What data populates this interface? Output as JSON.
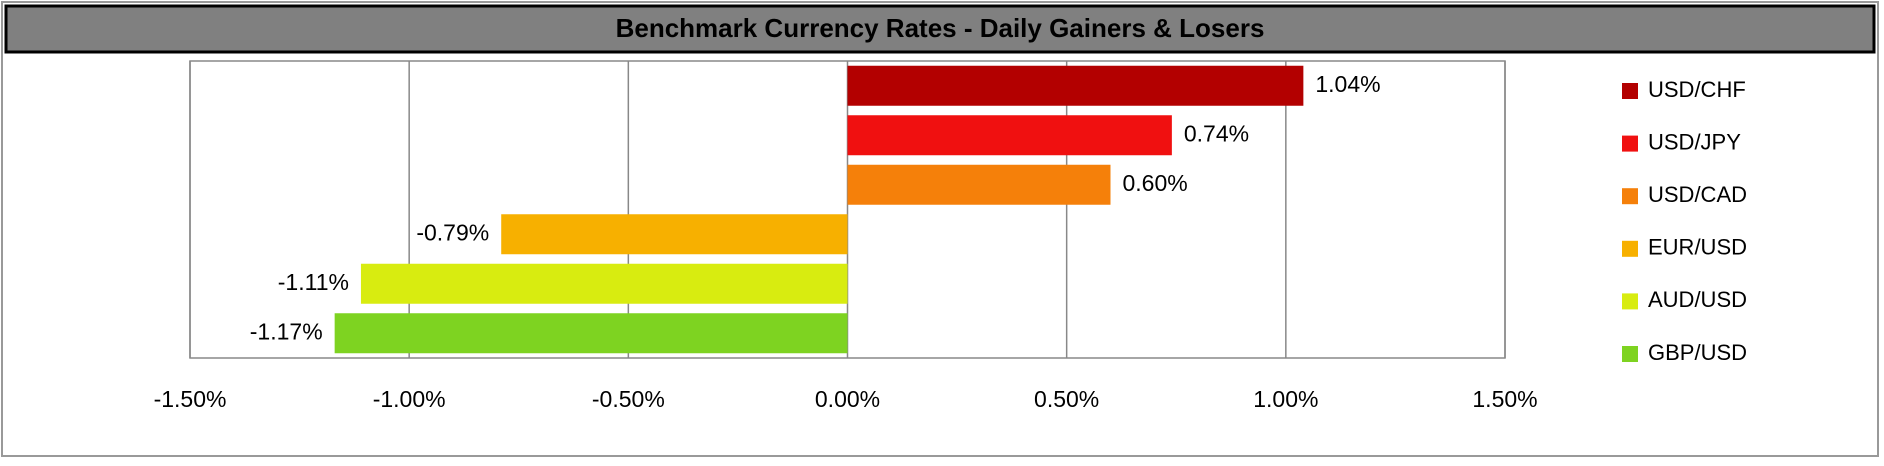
{
  "chart_data": {
    "type": "bar",
    "orientation": "horizontal",
    "title": "Benchmark Currency Rates - Daily Gainers & Losers",
    "categories": [
      "USD/CHF",
      "USD/JPY",
      "USD/CAD",
      "EUR/USD",
      "AUD/USD",
      "GBP/USD"
    ],
    "values": [
      1.04,
      0.74,
      0.6,
      -0.79,
      -1.11,
      -1.17
    ],
    "value_labels": [
      "1.04%",
      "0.74%",
      "0.60%",
      "-0.79%",
      "-1.11%",
      "-1.17%"
    ],
    "colors": [
      "#b30000",
      "#f01010",
      "#f5800a",
      "#f7b000",
      "#d8ec10",
      "#7ed321"
    ],
    "xlim": [
      -1.5,
      1.5
    ],
    "xticks": [
      {
        "value": -1.5,
        "label": "-1.50%"
      },
      {
        "value": -1.0,
        "label": "-1.00%"
      },
      {
        "value": -0.5,
        "label": "-0.50%"
      },
      {
        "value": 0,
        "label": "0.00%"
      },
      {
        "value": 0.5,
        "label": "0.50%"
      },
      {
        "value": 1.0,
        "label": "1.00%"
      },
      {
        "value": 1.5,
        "label": "1.50%"
      }
    ],
    "grid": true,
    "legend": "right"
  }
}
